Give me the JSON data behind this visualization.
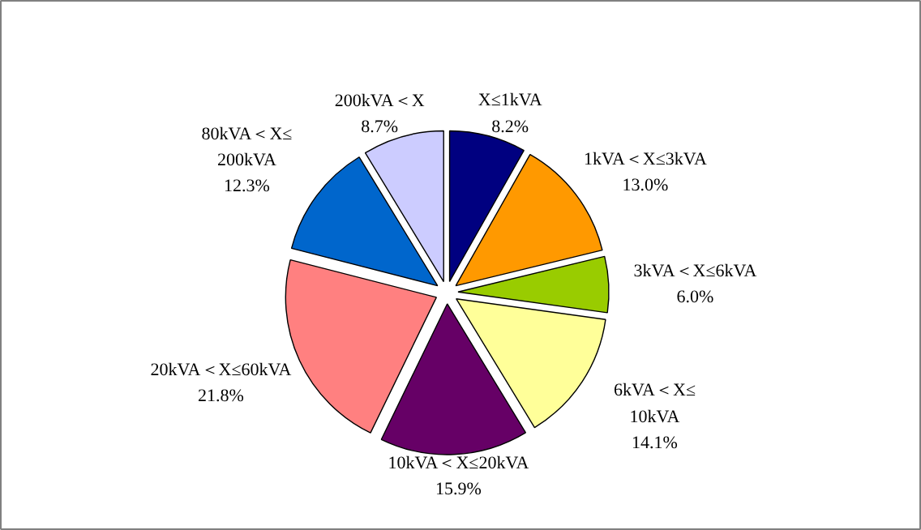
{
  "chart_data": {
    "type": "pie",
    "categories": [
      "X≤1kVA",
      "1kVA＜X≤3kVA",
      "3kVA＜X≤6kVA",
      "6kVA＜X≤\n10kVA",
      "10kVA＜X≤20kVA",
      "20kVA＜X≤60kVA",
      "80kVA＜X≤\n200kVA",
      "200kVA＜X"
    ],
    "values": [
      8.2,
      13.0,
      6.0,
      14.1,
      15.9,
      21.8,
      12.3,
      8.7
    ],
    "value_labels": [
      "8.2%",
      "13.0%",
      "6.0%",
      "14.1%",
      "15.9%",
      "21.8%",
      "12.3%",
      "8.7%"
    ],
    "colors": [
      "#000080",
      "#ff9900",
      "#99cc00",
      "#ffff99",
      "#660066",
      "#ff8080",
      "#0066cc",
      "#ccccff"
    ]
  }
}
